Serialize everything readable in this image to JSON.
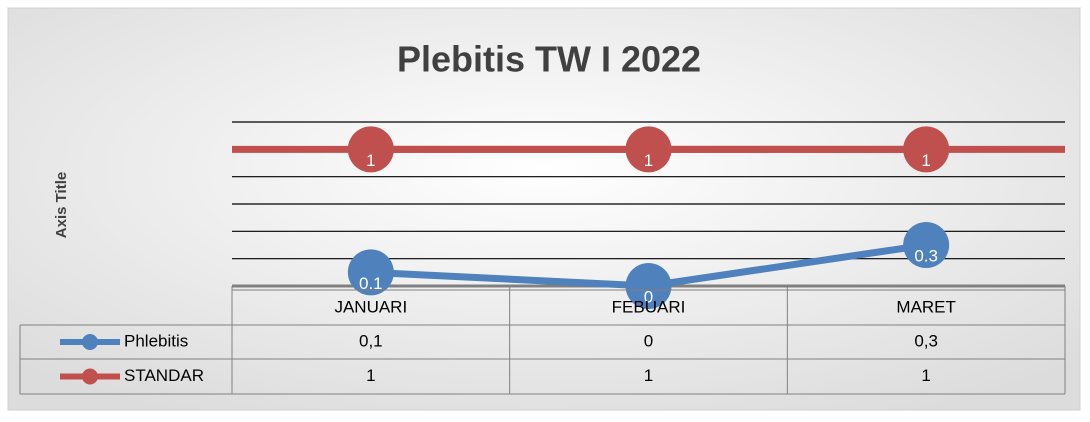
{
  "chart_data": {
    "type": "line",
    "title": "Plebitis TW I 2022",
    "y_axis_label": "Axis Title",
    "categories": [
      "JANUARI",
      "FEBUARI",
      "MARET"
    ],
    "series": [
      {
        "name": "Phlebitis",
        "color": "#4f81bd",
        "values": [
          0.1,
          0,
          0.3
        ],
        "value_labels": [
          "0,1",
          "0",
          "0,3"
        ]
      },
      {
        "name": "STANDAR",
        "color": "#c0504d",
        "values": [
          1,
          1,
          1
        ]
      }
    ],
    "ylim": [
      0,
      1.2
    ],
    "yticks": [
      0,
      0.2,
      0.4,
      0.6,
      0.8,
      1,
      1.2
    ],
    "grid": true,
    "data_table": true
  }
}
